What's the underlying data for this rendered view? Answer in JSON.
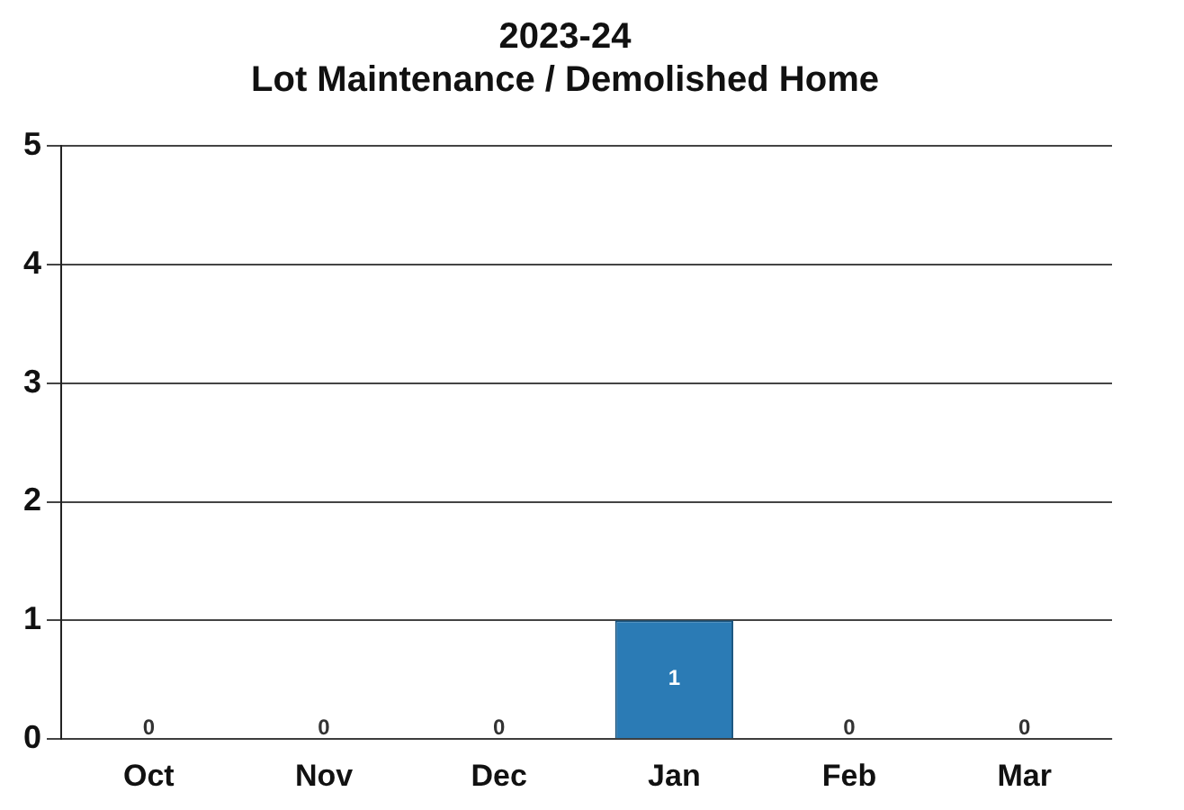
{
  "chart_data": {
    "type": "bar",
    "title": "2023-24",
    "subtitle": "Lot Maintenance / Demolished Home",
    "categories": [
      "Oct",
      "Nov",
      "Dec",
      "Jan",
      "Feb",
      "Mar"
    ],
    "values": [
      0,
      0,
      0,
      1,
      0,
      0
    ],
    "color": "#2b7bb5",
    "ylim": [
      0,
      5
    ],
    "yticks": [
      0,
      1,
      2,
      3,
      4,
      5
    ],
    "grid": "y",
    "data_labels": true
  }
}
